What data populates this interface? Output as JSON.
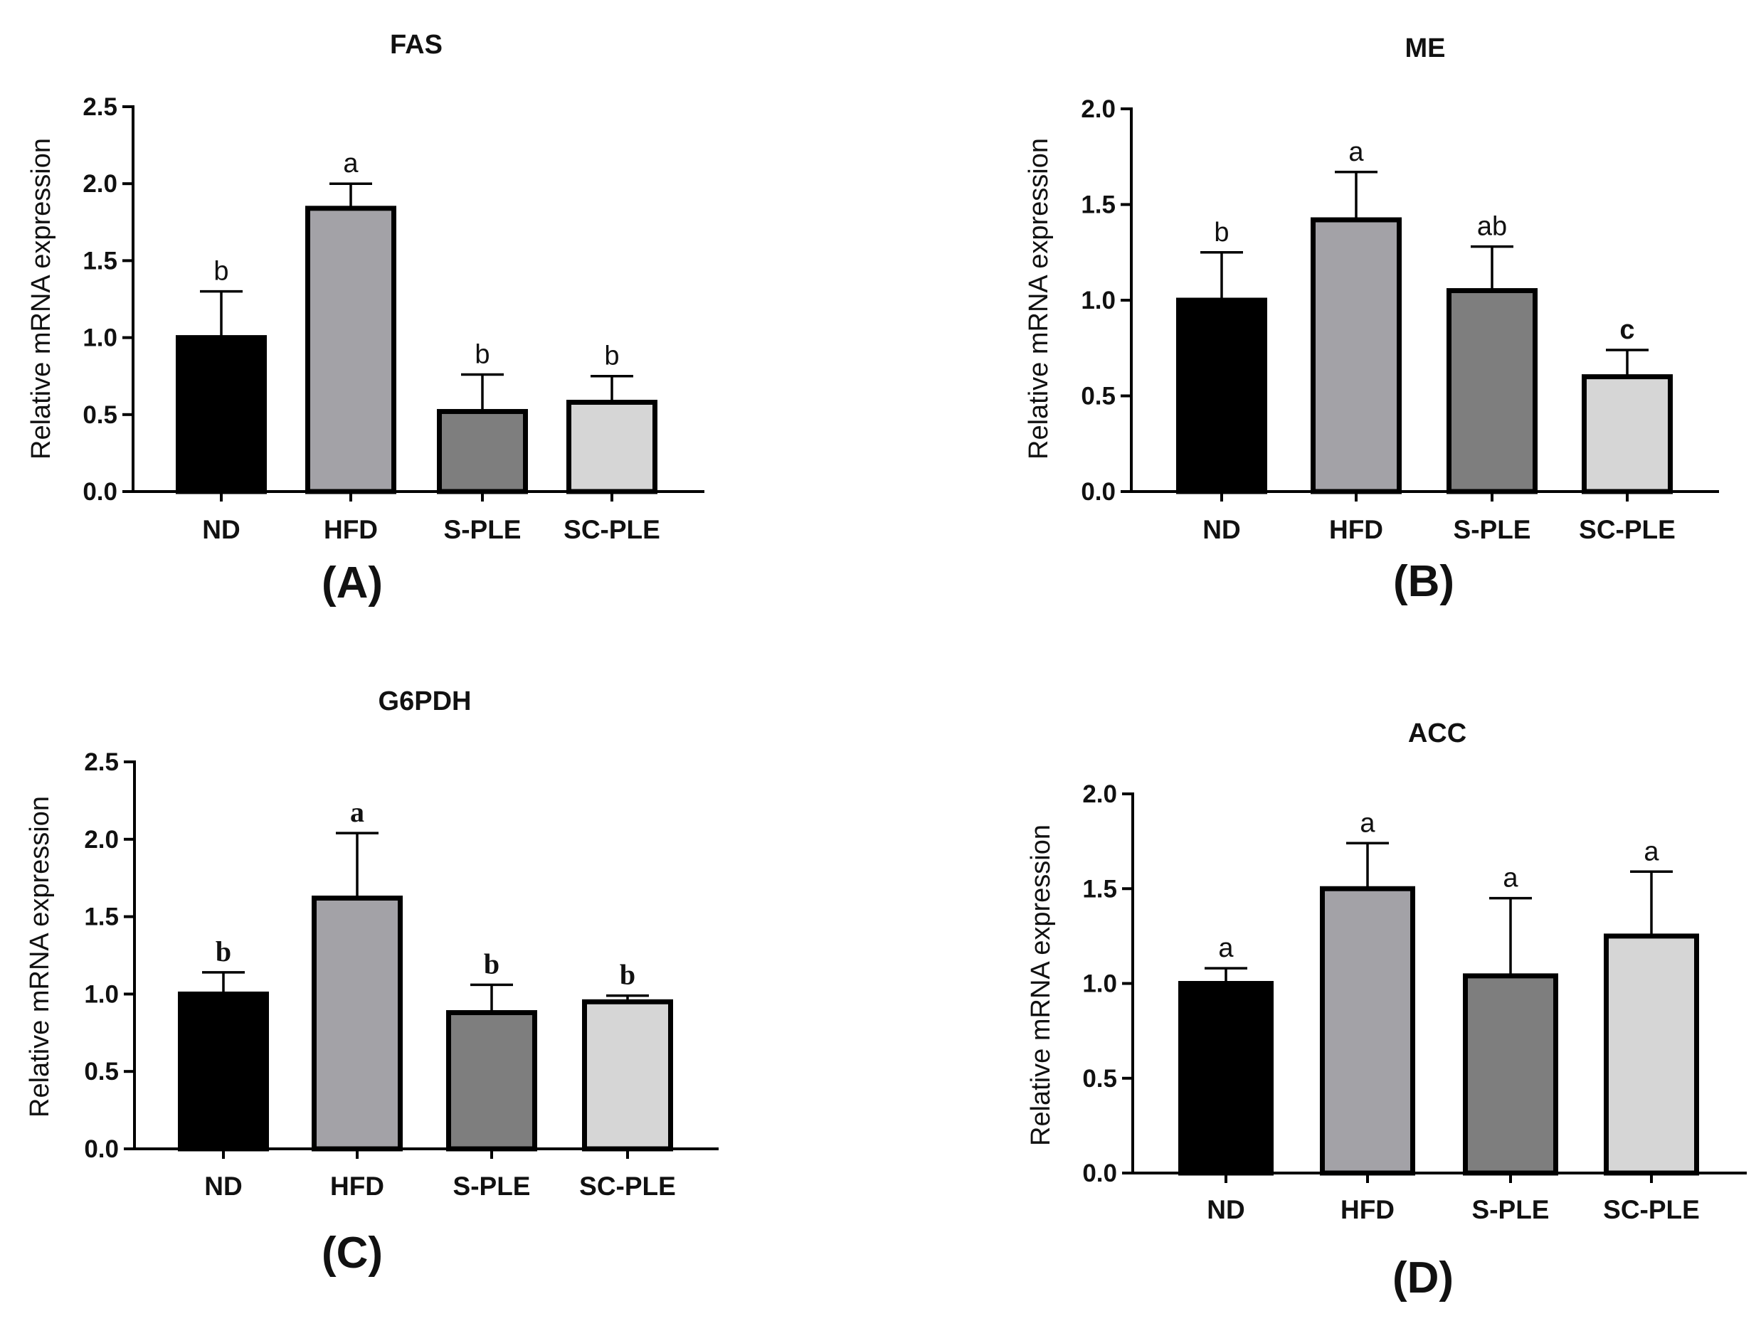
{
  "colors": {
    "ND": "#000000",
    "HFD": "#a3a2a7",
    "S-PLE": "#7e7e7e",
    "SC-PLE": "#d6d6d6",
    "outline": "#000000"
  },
  "chart_data": [
    {
      "type": "bar",
      "panel_label": "(A)",
      "title": "FAS",
      "ylabel": "Relative mRNA expression",
      "xlabel": "",
      "ylim": [
        0,
        2.5
      ],
      "yticks": [
        0.0,
        0.5,
        1.0,
        1.5,
        2.0,
        2.5
      ],
      "ytick_labels": [
        "0.0",
        "0.5",
        "1.0",
        "1.5",
        "2.0",
        "2.5"
      ],
      "categories": [
        "ND",
        "HFD",
        "S-PLE",
        "SC-PLE"
      ],
      "values": [
        1.0,
        1.84,
        0.52,
        0.58
      ],
      "errors": [
        0.3,
        0.16,
        0.24,
        0.17
      ],
      "significance": [
        "b",
        "a",
        "b",
        "b"
      ],
      "significance_style": "sans"
    },
    {
      "type": "bar",
      "panel_label": "(B)",
      "title": "ME",
      "ylabel": "Relative mRNA expression",
      "xlabel": "",
      "ylim": [
        0,
        2.0
      ],
      "yticks": [
        0.0,
        0.5,
        1.0,
        1.5,
        2.0
      ],
      "ytick_labels": [
        "0.0",
        "0.5",
        "1.0",
        "1.5",
        "2.0"
      ],
      "categories": [
        "ND",
        "HFD",
        "S-PLE",
        "SC-PLE"
      ],
      "values": [
        1.0,
        1.42,
        1.05,
        0.6
      ],
      "errors": [
        0.25,
        0.25,
        0.23,
        0.14
      ],
      "significance": [
        "b",
        "a",
        "ab",
        "c"
      ],
      "significance_style": "sans"
    },
    {
      "type": "bar",
      "panel_label": "(C)",
      "title": "G6PDH",
      "ylabel": "Relative mRNA expression",
      "xlabel": "",
      "ylim": [
        0,
        2.5
      ],
      "yticks": [
        0.0,
        0.5,
        1.0,
        1.5,
        2.0,
        2.5
      ],
      "ytick_labels": [
        "0.0",
        "0.5",
        "1.0",
        "1.5",
        "2.0",
        "2.5"
      ],
      "categories": [
        "ND",
        "HFD",
        "S-PLE",
        "SC-PLE"
      ],
      "values": [
        1.0,
        1.62,
        0.88,
        0.95
      ],
      "errors": [
        0.14,
        0.42,
        0.18,
        0.04
      ],
      "significance": [
        "b",
        "a",
        "b",
        "b"
      ],
      "significance_style": "serif"
    },
    {
      "type": "bar",
      "panel_label": "(D)",
      "title": "ACC",
      "ylabel": "Relative mRNA expression",
      "xlabel": "",
      "ylim": [
        0,
        2.0
      ],
      "yticks": [
        0.0,
        0.5,
        1.0,
        1.5,
        2.0
      ],
      "ytick_labels": [
        "0.0",
        "0.5",
        "1.0",
        "1.5",
        "2.0"
      ],
      "categories": [
        "ND",
        "HFD",
        "S-PLE",
        "SC-PLE"
      ],
      "values": [
        1.0,
        1.5,
        1.04,
        1.25
      ],
      "errors": [
        0.08,
        0.24,
        0.41,
        0.34
      ],
      "significance": [
        "a",
        "a",
        "a",
        "a"
      ],
      "significance_style": "sans"
    }
  ]
}
